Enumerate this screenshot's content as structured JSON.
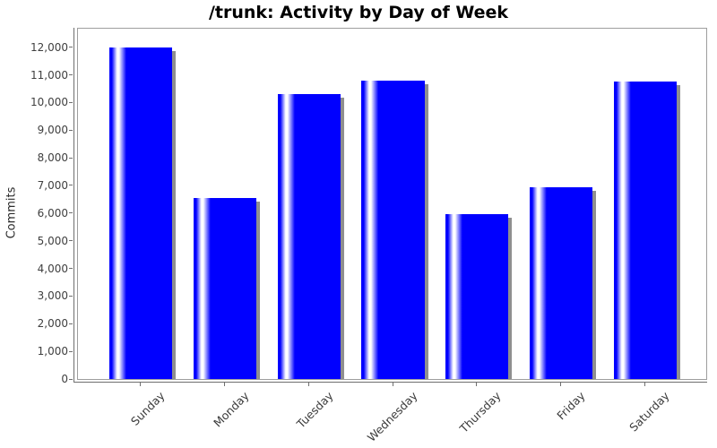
{
  "chart_data": {
    "type": "bar",
    "title": "/trunk: Activity by Day of Week",
    "ylabel": "Commits",
    "xlabel": "",
    "categories": [
      "Sunday",
      "Monday",
      "Tuesday",
      "Wednesday",
      "Thursday",
      "Friday",
      "Saturday"
    ],
    "values": [
      12000,
      6560,
      10310,
      10780,
      5960,
      6950,
      10760
    ],
    "ylim": [
      0,
      12000
    ],
    "ytick_interval": 1000,
    "ytick_labels": [
      "0",
      "1,000",
      "2,000",
      "3,000",
      "4,000",
      "5,000",
      "6,000",
      "7,000",
      "8,000",
      "9,000",
      "10,000",
      "11,000",
      "12,000"
    ],
    "grid": false,
    "legend": "none"
  },
  "colors": {
    "bar_blue": "#0000ff",
    "bar_highlight": "#ffffff",
    "bar_shadow": "#8f8f8f",
    "axis_line": "#6e6e6e",
    "plot_border": "#9e9e9e",
    "tick_label": "#3f3f3f",
    "title_text": "#000000"
  }
}
